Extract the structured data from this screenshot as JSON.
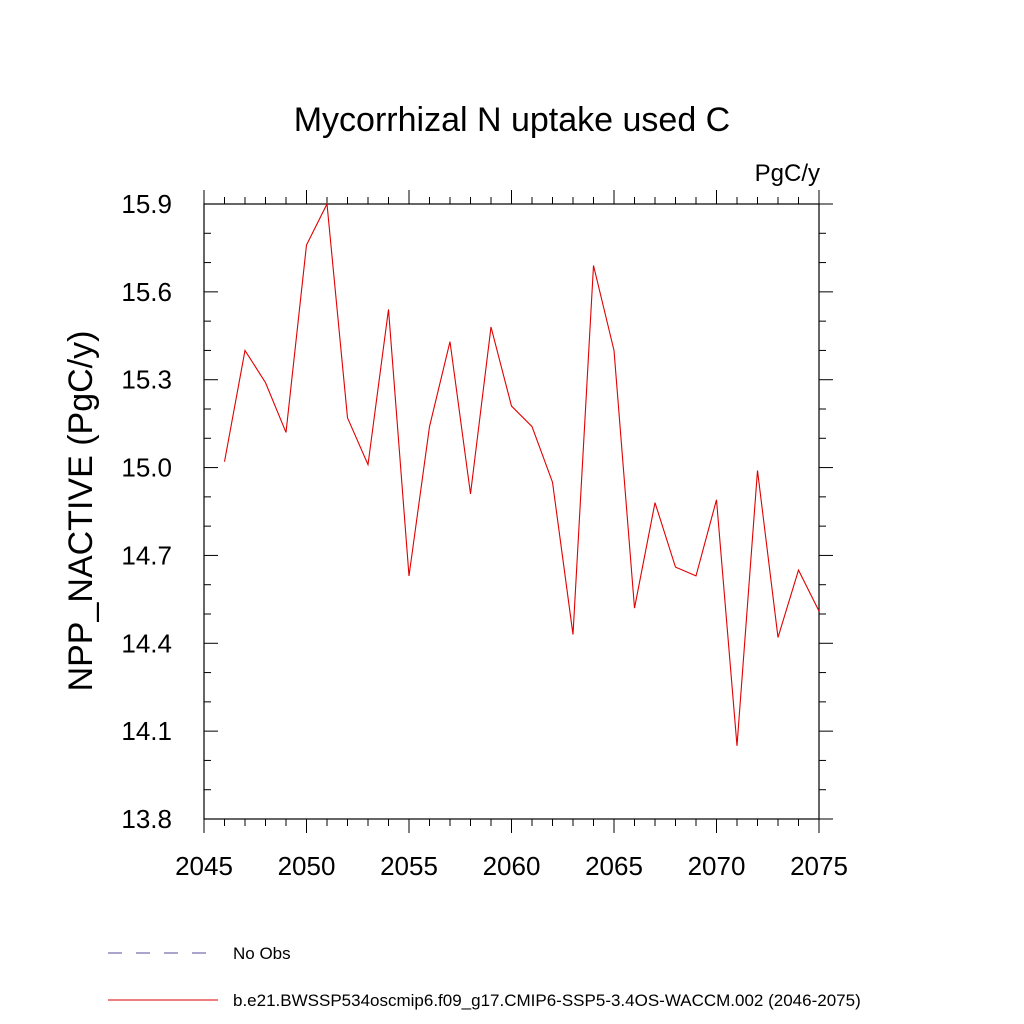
{
  "chart_data": {
    "type": "line",
    "title": "Mycorrhizal N uptake used C",
    "units_label": "PgC/y",
    "ylabel": "NPP_NACTIVE  (PgC/y)",
    "xlabel": "",
    "xlim": [
      2045,
      2075
    ],
    "ylim": [
      13.8,
      15.9
    ],
    "x_ticks": [
      2045,
      2050,
      2055,
      2060,
      2065,
      2070,
      2075
    ],
    "x_tick_labels": [
      "2045",
      "2050",
      "2055",
      "2060",
      "2065",
      "2070",
      "2075"
    ],
    "y_ticks": [
      13.8,
      14.1,
      14.4,
      14.7,
      15.0,
      15.3,
      15.6,
      15.9
    ],
    "y_tick_labels": [
      "13.8",
      "14.1",
      "14.4",
      "14.7",
      "15.0",
      "15.3",
      "15.6",
      "15.9"
    ],
    "series": [
      {
        "name": "b.e21.BWSSP534oscmip6.f09_g17.CMIP6-SSP5-3.4OS-WACCM.002 (2046-2075)",
        "color": "#e00000",
        "x": [
          2046,
          2047,
          2048,
          2049,
          2050,
          2051,
          2052,
          2053,
          2054,
          2055,
          2056,
          2057,
          2058,
          2059,
          2060,
          2061,
          2062,
          2063,
          2064,
          2065,
          2066,
          2067,
          2068,
          2069,
          2070,
          2071,
          2072,
          2073,
          2074,
          2075
        ],
        "values": [
          15.02,
          15.4,
          15.29,
          15.12,
          15.76,
          15.9,
          15.17,
          15.01,
          15.54,
          14.63,
          15.14,
          15.43,
          14.91,
          15.48,
          15.21,
          15.14,
          14.95,
          14.43,
          15.69,
          15.4,
          14.52,
          14.88,
          14.66,
          14.63,
          14.89,
          14.05,
          14.99,
          14.42,
          14.65,
          14.51
        ]
      }
    ],
    "legend": [
      {
        "label": "No Obs",
        "color": "#5a4a9c",
        "style": "dashed"
      },
      {
        "label": "b.e21.BWSSP534oscmip6.f09_g17.CMIP6-SSP5-3.4OS-WACCM.002 (2046-2075)",
        "color": "#e00000",
        "style": "solid"
      }
    ]
  }
}
